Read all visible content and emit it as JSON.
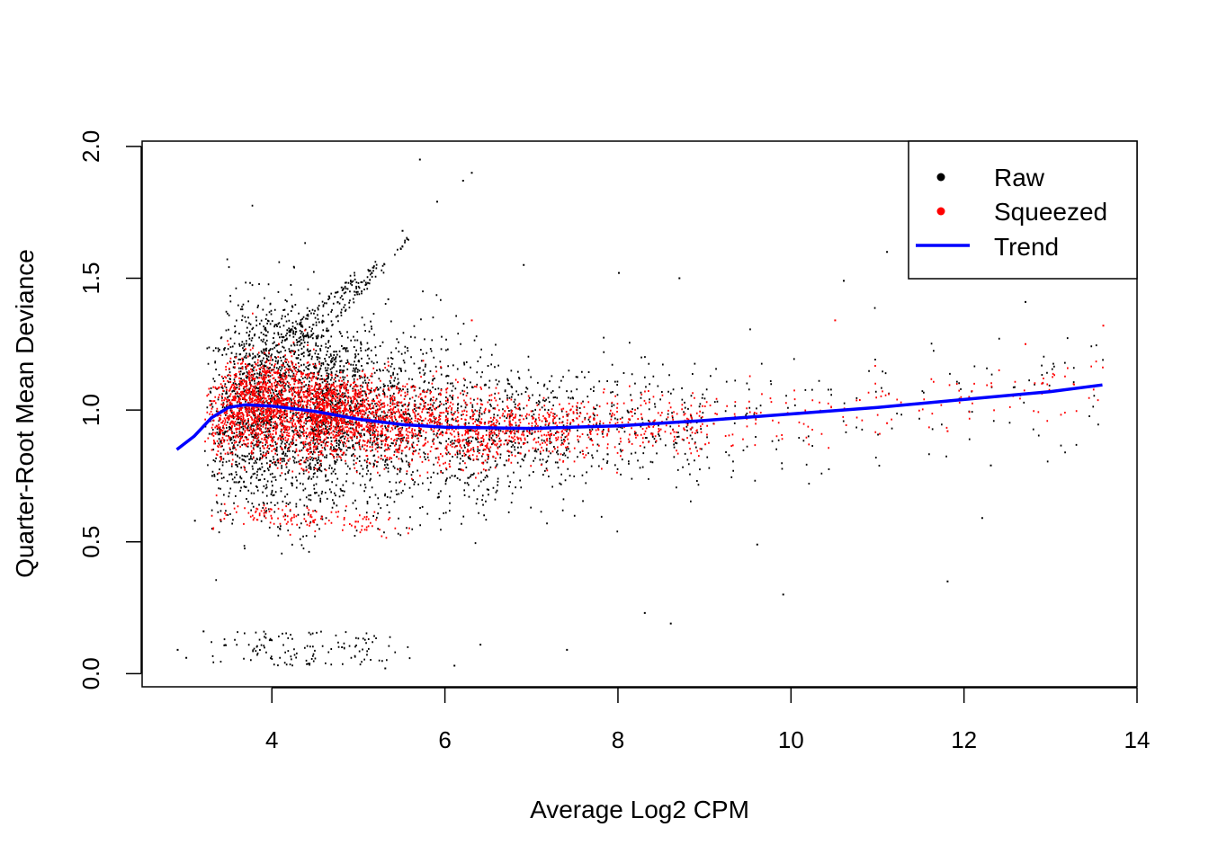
{
  "chart_data": {
    "type": "scatter",
    "title": "",
    "xlabel": "Average Log2 CPM",
    "ylabel": "Quarter-Root Mean Deviance",
    "xlim": [
      2.5,
      14
    ],
    "ylim": [
      -0.05,
      2.02
    ],
    "x_ticks": [
      4,
      6,
      8,
      10,
      12,
      14
    ],
    "x_tick_labels": [
      "4",
      "6",
      "8",
      "10",
      "12",
      "14"
    ],
    "y_ticks": [
      0.0,
      0.5,
      1.0,
      1.5,
      2.0
    ],
    "y_tick_labels": [
      "0.0",
      "0.5",
      "1.0",
      "1.5",
      "2.0"
    ],
    "grid": false,
    "legend": {
      "position": "top-right",
      "entries": [
        {
          "label": "Raw",
          "kind": "point",
          "color": "#000000"
        },
        {
          "label": "Squeezed",
          "kind": "point",
          "color": "#ff0000"
        },
        {
          "label": "Trend",
          "kind": "line",
          "color": "#0000ff"
        }
      ]
    },
    "series": [
      {
        "name": "Raw",
        "kind": "points",
        "color": "#000000",
        "approx_points": 26000,
        "sample_points": [
          [
            5.7,
            1.95
          ],
          [
            6.3,
            1.9
          ],
          [
            6.2,
            1.87
          ],
          [
            5.9,
            1.79
          ],
          [
            5.5,
            1.68
          ],
          [
            6.9,
            1.55
          ],
          [
            8.0,
            1.52
          ],
          [
            8.7,
            1.5
          ],
          [
            10.6,
            1.49
          ],
          [
            11.1,
            1.6
          ],
          [
            12.1,
            1.54
          ],
          [
            12.7,
            1.41
          ],
          [
            3.3,
            0.75
          ],
          [
            3.1,
            0.58
          ],
          [
            3.3,
            0.55
          ],
          [
            9.6,
            0.49
          ],
          [
            9.9,
            0.3
          ],
          [
            11.8,
            0.35
          ],
          [
            12.2,
            0.59
          ],
          [
            12.3,
            0.79
          ],
          [
            8.3,
            0.23
          ],
          [
            8.6,
            0.19
          ],
          [
            5.3,
            0.02
          ],
          [
            6.4,
            0.11
          ],
          [
            7.4,
            0.09
          ],
          [
            2.9,
            0.09
          ],
          [
            3.0,
            0.06
          ],
          [
            3.2,
            0.16
          ],
          [
            4.8,
            0.1
          ],
          [
            6.1,
            0.03
          ]
        ]
      },
      {
        "name": "Squeezed",
        "kind": "points",
        "color": "#ff0000",
        "approx_points": 26000,
        "sample_points": [
          [
            6.3,
            1.34
          ],
          [
            10.5,
            1.34
          ],
          [
            12.7,
            1.25
          ],
          [
            13.6,
            1.32
          ],
          [
            7.6,
            0.82
          ],
          [
            9.0,
            0.87
          ],
          [
            11.1,
            0.95
          ],
          [
            11.8,
            0.92
          ]
        ]
      },
      {
        "name": "Trend",
        "kind": "line",
        "color": "#0000ff",
        "x": [
          2.9,
          3.1,
          3.3,
          3.5,
          3.7,
          4.0,
          4.5,
          5.0,
          5.5,
          6.0,
          7.0,
          8.0,
          9.0,
          10.0,
          11.0,
          12.0,
          13.0,
          13.6
        ],
        "y": [
          0.85,
          0.9,
          0.97,
          1.01,
          1.02,
          1.015,
          0.995,
          0.965,
          0.945,
          0.935,
          0.93,
          0.94,
          0.96,
          0.985,
          1.01,
          1.04,
          1.07,
          1.095
        ]
      }
    ]
  }
}
